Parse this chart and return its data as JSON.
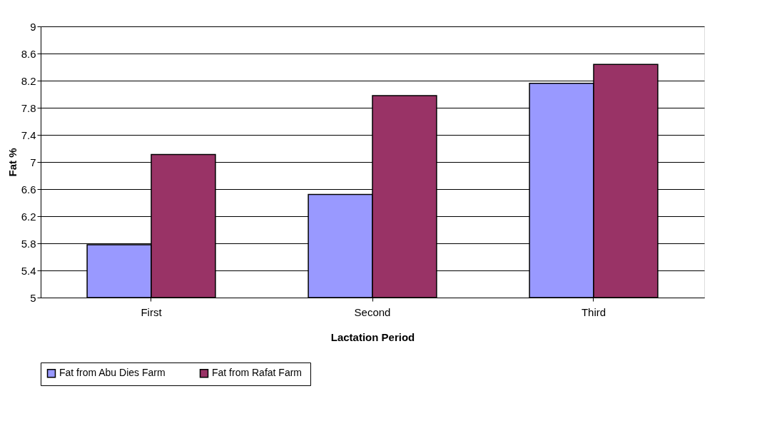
{
  "chart_data": {
    "type": "bar",
    "xlabel": "Lactation Period",
    "ylabel": "Fat %",
    "categories": [
      "First",
      "Second",
      "Third"
    ],
    "series": [
      {
        "name": "Fat  from Abu Dies Farm",
        "color": "#9999ff",
        "values": [
          5.78,
          6.52,
          8.16
        ]
      },
      {
        "name": "Fat  from Rafat Farm",
        "color": "#993366",
        "values": [
          7.11,
          7.98,
          8.44
        ]
      }
    ],
    "ylim": [
      5,
      9
    ],
    "yticks": [
      5,
      5.4,
      5.8,
      6.2,
      6.6,
      7,
      7.4,
      7.8,
      8.2,
      8.6,
      9
    ],
    "grid": "y",
    "legend": "bottom"
  }
}
